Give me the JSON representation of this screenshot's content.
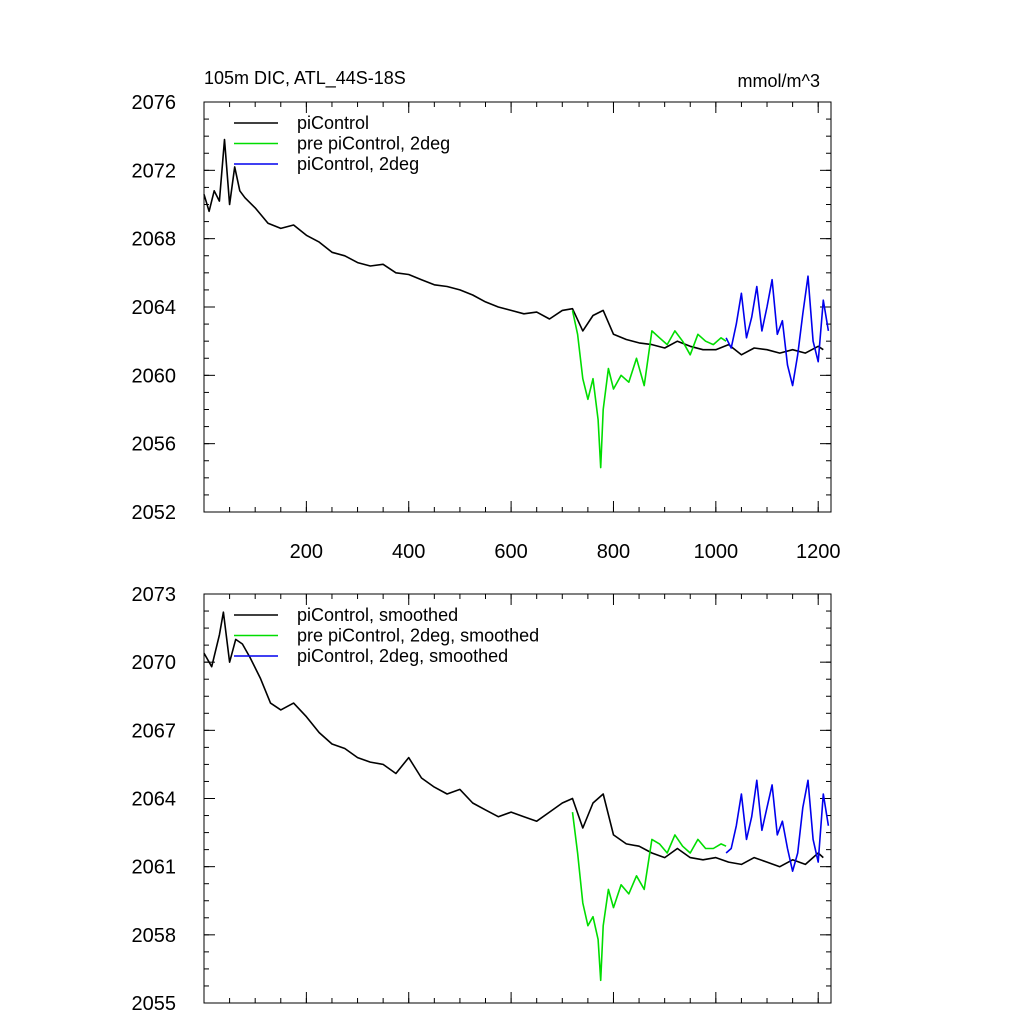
{
  "title_left": "105m DIC, ATL_44S-18S",
  "title_right": "mmol/m^3",
  "chart_data": [
    {
      "type": "line",
      "xlim": [
        0,
        1225
      ],
      "ylim": [
        2052,
        2076
      ],
      "xticks": [
        200,
        400,
        600,
        800,
        1000,
        1200
      ],
      "xtick_labels": [
        "200",
        "400",
        "600",
        "800",
        "1000",
        "1200"
      ],
      "yticks": [
        2052,
        2056,
        2060,
        2064,
        2068,
        2072,
        2076
      ],
      "ytick_labels": [
        "2052",
        "2056",
        "2060",
        "2064",
        "2068",
        "2072",
        "2076"
      ],
      "series": [
        {
          "name": "piControl",
          "color": "#000000",
          "x": [
            0,
            10,
            20,
            30,
            40,
            50,
            60,
            70,
            80,
            100,
            125,
            150,
            175,
            200,
            225,
            250,
            275,
            300,
            325,
            350,
            375,
            400,
            425,
            450,
            475,
            500,
            525,
            550,
            575,
            600,
            625,
            650,
            675,
            700,
            720,
            740,
            760,
            780,
            800,
            825,
            850,
            875,
            900,
            925,
            950,
            975,
            1000,
            1025,
            1050,
            1075,
            1100,
            1125,
            1150,
            1175,
            1200,
            1210
          ],
          "y": [
            2070.6,
            2069.6,
            2070.8,
            2070.2,
            2073.8,
            2070.0,
            2072.2,
            2070.8,
            2070.4,
            2069.8,
            2068.9,
            2068.6,
            2068.8,
            2068.2,
            2067.8,
            2067.2,
            2067.0,
            2066.6,
            2066.4,
            2066.5,
            2066.0,
            2065.9,
            2065.6,
            2065.3,
            2065.2,
            2065.0,
            2064.7,
            2064.3,
            2064.0,
            2063.8,
            2063.6,
            2063.7,
            2063.3,
            2063.8,
            2063.9,
            2062.6,
            2063.5,
            2063.8,
            2062.4,
            2062.1,
            2061.9,
            2061.8,
            2061.6,
            2062.0,
            2061.7,
            2061.5,
            2061.5,
            2061.8,
            2061.2,
            2061.6,
            2061.5,
            2061.3,
            2061.5,
            2061.3,
            2061.7,
            2061.5
          ]
        },
        {
          "name": "pre piControl, 2deg",
          "color": "#00dd00",
          "x": [
            720,
            730,
            740,
            750,
            760,
            770,
            775,
            780,
            790,
            800,
            815,
            830,
            845,
            860,
            875,
            890,
            905,
            920,
            935,
            950,
            965,
            980,
            995,
            1010,
            1020
          ],
          "y": [
            2063.8,
            2062.4,
            2059.8,
            2058.6,
            2059.8,
            2057.4,
            2054.6,
            2058.0,
            2060.4,
            2059.2,
            2060.0,
            2059.6,
            2061.0,
            2059.4,
            2062.6,
            2062.2,
            2061.8,
            2062.6,
            2062.0,
            2061.2,
            2062.4,
            2062.0,
            2061.8,
            2062.2,
            2062.0
          ]
        },
        {
          "name": "piControl, 2deg",
          "color": "#0000ee",
          "x": [
            1020,
            1030,
            1040,
            1050,
            1060,
            1070,
            1080,
            1090,
            1100,
            1110,
            1120,
            1130,
            1140,
            1150,
            1160,
            1170,
            1180,
            1190,
            1200,
            1210,
            1220
          ],
          "y": [
            2062.2,
            2061.6,
            2063.0,
            2064.8,
            2062.2,
            2063.4,
            2065.2,
            2062.6,
            2064.0,
            2065.6,
            2062.4,
            2063.2,
            2060.6,
            2059.4,
            2061.2,
            2063.6,
            2065.8,
            2062.0,
            2060.8,
            2064.4,
            2062.6
          ]
        }
      ]
    },
    {
      "type": "line",
      "xlim": [
        0,
        1225
      ],
      "ylim": [
        2055,
        2073
      ],
      "xticks": [
        200,
        400,
        600,
        800,
        1000,
        1200
      ],
      "xtick_labels": [
        "",
        "",
        "",
        "",
        "",
        ""
      ],
      "yticks": [
        2055,
        2058,
        2061,
        2064,
        2067,
        2070,
        2073
      ],
      "ytick_labels": [
        "2055",
        "2058",
        "2061",
        "2064",
        "2067",
        "2070",
        "2073"
      ],
      "series": [
        {
          "name": "piControl, smoothed",
          "color": "#000000",
          "x": [
            0,
            15,
            30,
            38,
            50,
            62,
            75,
            90,
            110,
            130,
            150,
            175,
            200,
            225,
            250,
            275,
            300,
            325,
            350,
            375,
            400,
            425,
            450,
            475,
            500,
            525,
            550,
            575,
            600,
            625,
            650,
            675,
            700,
            720,
            740,
            760,
            780,
            800,
            825,
            850,
            875,
            900,
            925,
            950,
            975,
            1000,
            1025,
            1050,
            1075,
            1100,
            1125,
            1150,
            1175,
            1200,
            1210
          ],
          "y": [
            2070.4,
            2069.8,
            2071.2,
            2072.2,
            2070.0,
            2071.0,
            2070.8,
            2070.2,
            2069.3,
            2068.2,
            2067.9,
            2068.2,
            2067.6,
            2066.9,
            2066.4,
            2066.2,
            2065.8,
            2065.6,
            2065.5,
            2065.1,
            2065.8,
            2064.9,
            2064.5,
            2064.2,
            2064.4,
            2063.8,
            2063.5,
            2063.2,
            2063.4,
            2063.2,
            2063.0,
            2063.4,
            2063.8,
            2064.0,
            2062.7,
            2063.8,
            2064.2,
            2062.4,
            2062.0,
            2061.9,
            2061.6,
            2061.4,
            2061.8,
            2061.4,
            2061.3,
            2061.4,
            2061.2,
            2061.1,
            2061.4,
            2061.2,
            2061.0,
            2061.3,
            2061.1,
            2061.6,
            2061.4
          ]
        },
        {
          "name": "pre piControl, 2deg, smoothed",
          "color": "#00dd00",
          "x": [
            720,
            730,
            740,
            750,
            760,
            770,
            775,
            780,
            790,
            800,
            815,
            830,
            845,
            860,
            875,
            890,
            905,
            920,
            935,
            950,
            965,
            980,
            995,
            1010,
            1020
          ],
          "y": [
            2063.4,
            2061.6,
            2059.4,
            2058.4,
            2058.8,
            2057.8,
            2056.0,
            2058.4,
            2060.0,
            2059.2,
            2060.2,
            2059.8,
            2060.6,
            2060.0,
            2062.2,
            2062.0,
            2061.6,
            2062.4,
            2061.9,
            2061.6,
            2062.2,
            2061.8,
            2061.8,
            2062.0,
            2061.9
          ]
        },
        {
          "name": "piControl, 2deg, smoothed",
          "color": "#0000ee",
          "x": [
            1020,
            1030,
            1040,
            1050,
            1060,
            1070,
            1080,
            1090,
            1100,
            1110,
            1120,
            1130,
            1140,
            1150,
            1160,
            1170,
            1180,
            1190,
            1200,
            1210,
            1220
          ],
          "y": [
            2061.6,
            2061.8,
            2062.8,
            2064.2,
            2062.2,
            2063.2,
            2064.8,
            2062.6,
            2063.6,
            2064.6,
            2062.4,
            2063.0,
            2061.8,
            2060.8,
            2061.6,
            2063.6,
            2064.8,
            2062.2,
            2061.2,
            2064.2,
            2062.8
          ]
        }
      ]
    }
  ]
}
